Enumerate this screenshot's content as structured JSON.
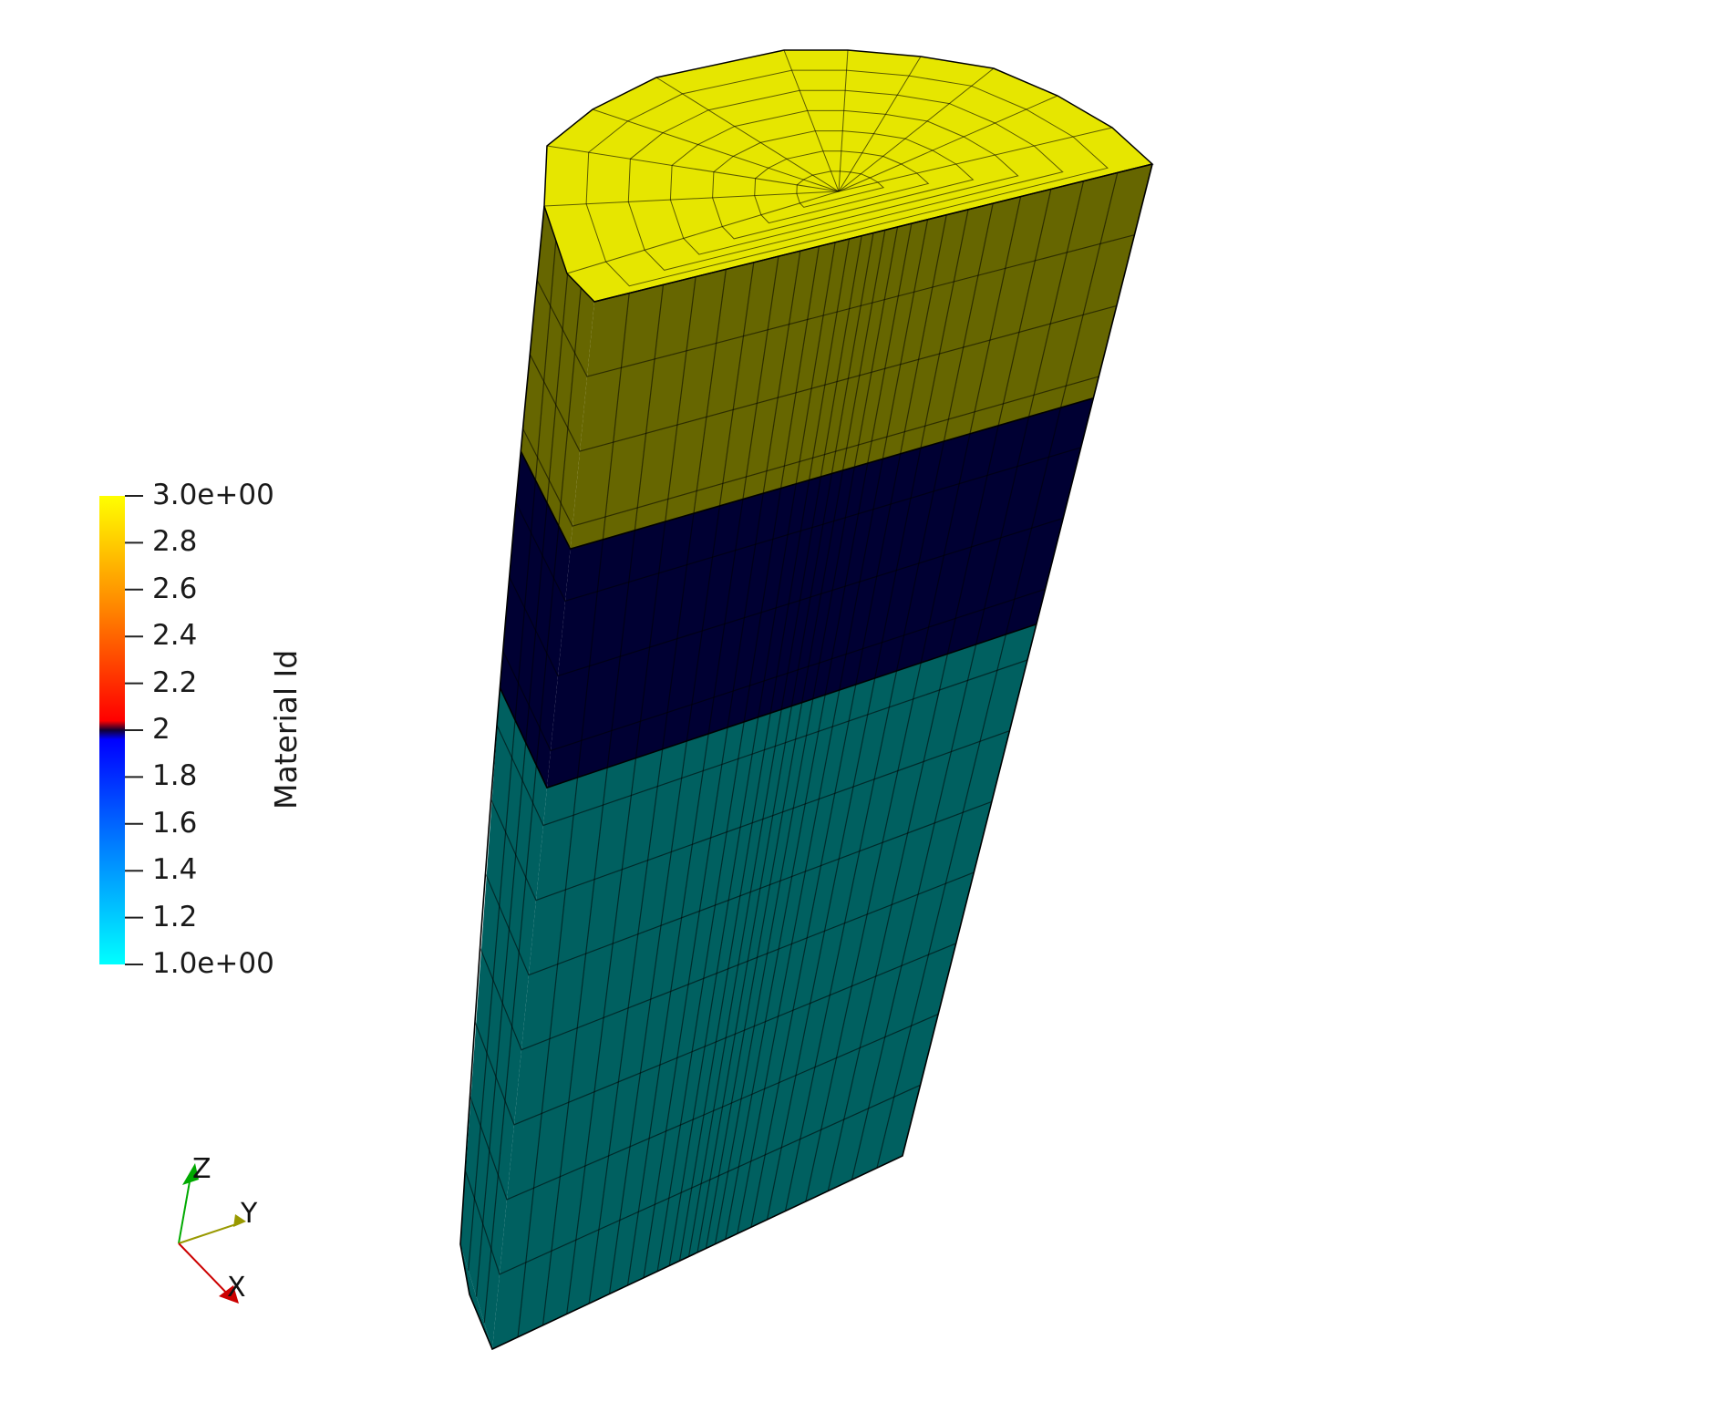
{
  "colorbar": {
    "title": "Material Id",
    "range": [
      1,
      3
    ],
    "ticks": [
      {
        "value": 3.0,
        "label": "3.0e+00"
      },
      {
        "value": 2.8,
        "label": "2.8"
      },
      {
        "value": 2.6,
        "label": "2.6"
      },
      {
        "value": 2.4,
        "label": "2.4"
      },
      {
        "value": 2.2,
        "label": "2.2"
      },
      {
        "value": 2.0,
        "label": "2"
      },
      {
        "value": 1.8,
        "label": "1.8"
      },
      {
        "value": 1.6,
        "label": "1.6"
      },
      {
        "value": 1.4,
        "label": "1.4"
      },
      {
        "value": 1.2,
        "label": "1.2"
      },
      {
        "value": 1.0,
        "label": "1.0e+00"
      }
    ]
  },
  "material_colors": {
    "top_face": "#e6e600",
    "upper_layer": "#666600",
    "middle_layer": "#000033",
    "lower_layer": "#006060"
  },
  "axes": {
    "x": "X",
    "y": "Y",
    "z": "Z",
    "x_color": "#cc0000",
    "y_color": "#999900",
    "z_color": "#00aa00"
  }
}
